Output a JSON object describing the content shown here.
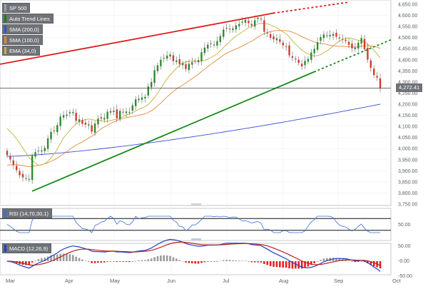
{
  "chart_data": {
    "type": "candlestick",
    "symbol": "SP 500",
    "price": {
      "ylim": [
        3750,
        4650
      ],
      "y_ticks": [
        "4,650.00",
        "4,600.00",
        "4,550.00",
        "4,500.00",
        "4,450.00",
        "4,400.00",
        "4,350.00",
        "4,300.00",
        "4,250.00",
        "4,200.00",
        "4,150.00",
        "4,100.00",
        "4,050.00",
        "4,000.00",
        "3,950.00",
        "3,900.00",
        "3,850.00",
        "3,800.00",
        "3,750.00"
      ],
      "last_price": "4,272.41",
      "closes": [
        3970,
        3951,
        3926,
        3903,
        3880,
        3870,
        3867,
        3863,
        3968,
        3984,
        3991,
        3992,
        4003,
        4046,
        4075,
        4078,
        4106,
        4144,
        4151,
        4153,
        4164,
        4165,
        4125,
        4132,
        4111,
        4108,
        4109,
        4076,
        4113,
        4135,
        4135,
        4138,
        4166,
        4169,
        4171,
        4137,
        4170,
        4164,
        4167,
        4165,
        4195,
        4222,
        4224,
        4230,
        4233,
        4280,
        4300,
        4353,
        4375,
        4400,
        4409,
        4419,
        4424,
        4394,
        4397,
        4380,
        4385,
        4358,
        4382,
        4389,
        4393,
        4398,
        4434,
        4455,
        4468,
        4471,
        4468,
        4484,
        4507,
        4536,
        4544,
        4538,
        4541,
        4555,
        4561,
        4571,
        4580,
        4565,
        4554,
        4578,
        4589,
        4582,
        4526,
        4520,
        4499,
        4492,
        4497,
        4481,
        4465,
        4459,
        4420,
        4409,
        4404,
        4386,
        4370,
        4395,
        4404,
        4433,
        4449,
        4479,
        4502,
        4514,
        4510,
        4512,
        4516,
        4504,
        4496,
        4494,
        4485,
        4467,
        4452,
        4455,
        4477,
        4498,
        4448,
        4401,
        4364,
        4331,
        4320,
        4272
      ],
      "sma_200_start": 3965,
      "sma_200_end": 4200,
      "sma_100_start": 3925,
      "sma_100_end": 4395,
      "ema_34_start": 4090,
      "ema_34_end": 4430
    },
    "x_labels": [
      "Mar",
      "Apr",
      "May",
      "Jun",
      "Jul",
      "Aug",
      "Sep",
      "Oct"
    ],
    "indicators": [
      {
        "name": "Auto Trend Lines",
        "color": "#1a7f1a"
      },
      {
        "name": "SMA (200,0)",
        "color": "#3a4fd4"
      },
      {
        "name": "SMA (100,0)",
        "color": "#e08a3c"
      },
      {
        "name": "EMA (34,0)",
        "color": "#c2b140"
      }
    ],
    "trend_lines": [
      {
        "name": "upper",
        "color": "#e01b1b",
        "from_price": 4380,
        "to_price": 4610,
        "extend_to_price": 4660
      },
      {
        "name": "lower",
        "color": "#1a8a1a",
        "from_price": 3808,
        "to_price": 4345,
        "extend_to_price": 4490
      }
    ],
    "rsi": {
      "label": "RSI (14,70,30,1)",
      "levels": [
        70,
        30
      ],
      "y_ticks": [
        "50.00"
      ]
    },
    "macd": {
      "label": "MACD (12,26,9)",
      "y_ticks": [
        "50.00",
        "-0.00",
        "-50.00"
      ]
    }
  }
}
